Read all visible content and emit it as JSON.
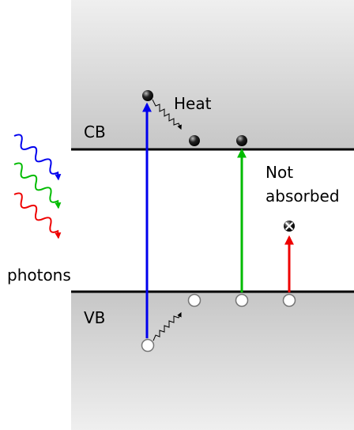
{
  "labels": {
    "conduction_band": "CB",
    "valence_band": "VB",
    "heat": "Heat",
    "not_absorbed_line1": "Not",
    "not_absorbed_line2": "absorbed",
    "photons": "photons"
  },
  "colors": {
    "blue": "#0000ee",
    "green": "#00bb00",
    "red": "#ee0000",
    "band_gray": "#c8c8c8"
  }
}
